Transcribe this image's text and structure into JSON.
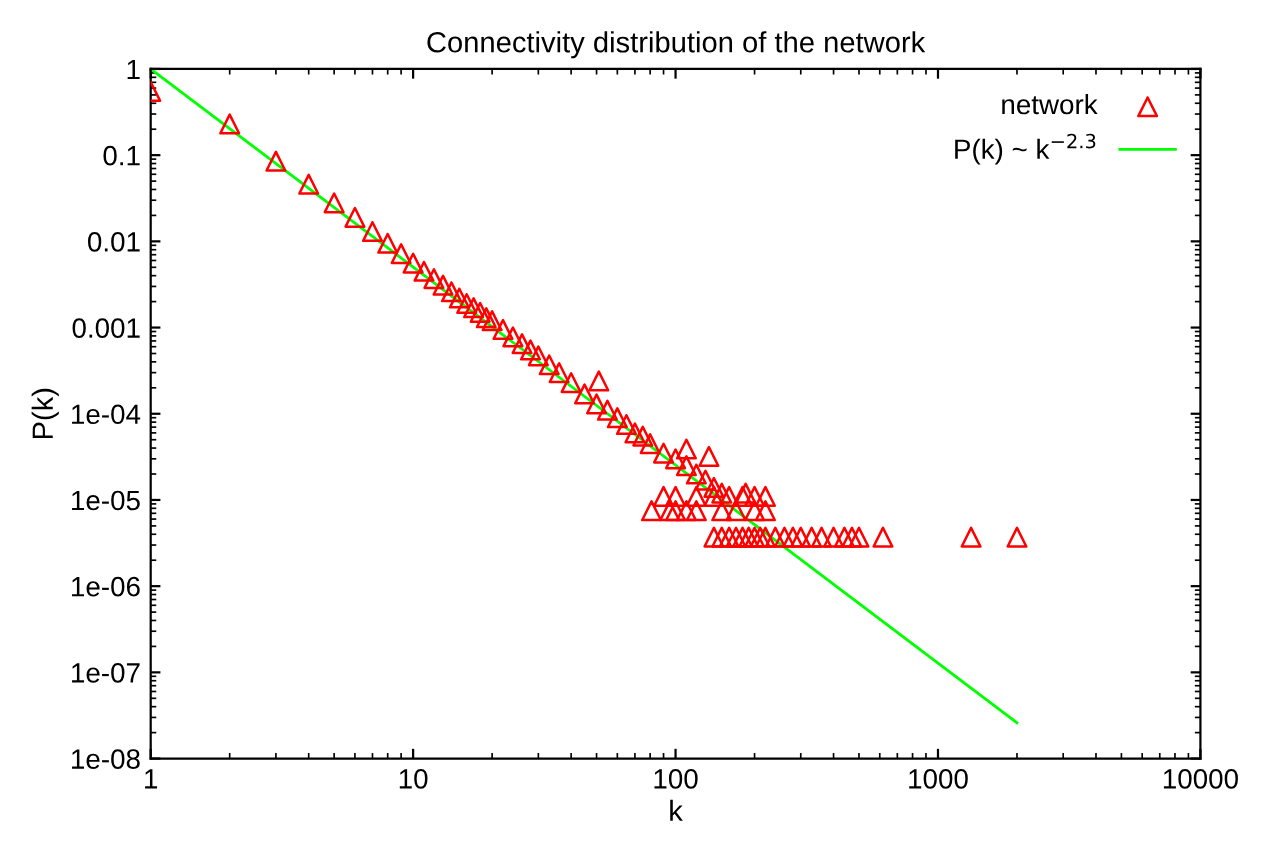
{
  "chart_data": {
    "type": "scatter",
    "title": "Connectivity distribution of the network",
    "xlabel": "k",
    "ylabel": "P(k)",
    "log": "xy",
    "grid": false,
    "legend": "top right",
    "xlim": [
      1,
      10000
    ],
    "xticks": [
      1,
      10,
      100,
      1000,
      10000
    ],
    "ylim": [
      1e-08,
      1
    ],
    "yticks": [
      {
        "value": 1e-08,
        "label": "1e-08"
      },
      {
        "value": 1e-07,
        "label": "1e-07"
      },
      {
        "value": 1e-06,
        "label": "1e-06"
      },
      {
        "value": 1e-05,
        "label": "1e-05"
      },
      {
        "value": 0.0001,
        "label": "1e-04"
      },
      {
        "value": 0.001,
        "label": "0.001"
      },
      {
        "value": 0.01,
        "label": "0.01"
      },
      {
        "value": 0.1,
        "label": "0.1"
      },
      {
        "value": 1,
        "label": "1"
      }
    ],
    "series": [
      {
        "name": "network",
        "marker": "triangle",
        "color": "#ff0000",
        "x": [
          1,
          2,
          3,
          4,
          5,
          6,
          7,
          8,
          9,
          10,
          11,
          12,
          13,
          14,
          15,
          16,
          17,
          18,
          19,
          20,
          22,
          24,
          26,
          28,
          30,
          33,
          36,
          40,
          45,
          50,
          51,
          55,
          60,
          65,
          70,
          75,
          80,
          90,
          100,
          110,
          120,
          130,
          140,
          150,
          110,
          134,
          185,
          81,
          95,
          100,
          110,
          120,
          150,
          170,
          200,
          220,
          90,
          100,
          120,
          140,
          160,
          180,
          200,
          220,
          140,
          150,
          160,
          170,
          180,
          190,
          200,
          210,
          220,
          240,
          260,
          280,
          300,
          330,
          360,
          400,
          440,
          470,
          500,
          617,
          1337,
          2000
        ],
        "values": [
          0.55,
          0.23,
          0.085,
          0.046,
          0.028,
          0.019,
          0.013,
          0.0095,
          0.0072,
          0.0056,
          0.0045,
          0.0037,
          0.0031,
          0.0026,
          0.0022,
          0.0019,
          0.0017,
          0.0015,
          0.0013,
          0.0012,
          0.00095,
          0.00078,
          0.00065,
          0.00055,
          0.00047,
          0.00037,
          0.0003,
          0.00023,
          0.00017,
          0.00013,
          0.00024,
          0.00011,
          9e-05,
          7.5e-05,
          6e-05,
          5.5e-05,
          4.5e-05,
          3.5e-05,
          3e-05,
          2.5e-05,
          2e-05,
          1.7e-05,
          1.4e-05,
          1.2e-05,
          3.9e-05,
          3.2e-05,
          1.2e-05,
          7.5e-06,
          7.5e-06,
          7.5e-06,
          7.5e-06,
          7.5e-06,
          7.5e-06,
          7.5e-06,
          7.5e-06,
          7.5e-06,
          1.1e-05,
          1.1e-05,
          1.1e-05,
          1.1e-05,
          1.1e-05,
          1.1e-05,
          1.1e-05,
          1.1e-05,
          3.7e-06,
          3.7e-06,
          3.7e-06,
          3.7e-06,
          3.7e-06,
          3.7e-06,
          3.7e-06,
          3.7e-06,
          3.7e-06,
          3.7e-06,
          3.7e-06,
          3.7e-06,
          3.7e-06,
          3.7e-06,
          3.7e-06,
          3.7e-06,
          3.7e-06,
          3.7e-06,
          3.7e-06,
          3.7e-06,
          3.7e-06,
          3.7e-06
        ]
      },
      {
        "name": "P(k) ~ k$^{−2.3}$",
        "type": "line",
        "color": "#00ff00",
        "x": [
          1,
          2000
        ],
        "values": [
          1,
          2.6e-08
        ]
      }
    ]
  }
}
